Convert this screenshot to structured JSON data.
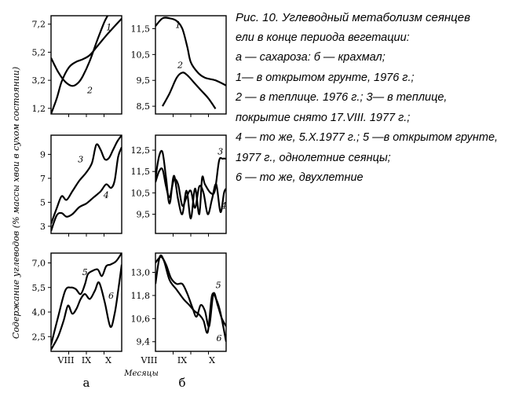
{
  "caption": {
    "line1": "Рис. 10. Углеводный метаболизм сеянцев",
    "line2": "ели в конце периода вегетации:",
    "line3": "а — сахароза: б — крахмал;",
    "line4": "1— в открытом грунте, 1976 г.;",
    "line5": "2 — в теплице. 1976 г.; 3— в теплице,",
    "line6": "покрытие снято 17.VIII. 1977 г.;",
    "line7": "4 — то же, 5.X.1977 г.; 5 —в открытом грунте,",
    "line8": "1977 г., однолетние сеянцы;",
    "line9": "6 — то же, двухлетние"
  },
  "ylabel": "Содержание углеводов (% массы хвои в сухом состоянии)",
  "xlabel": "Месяцы",
  "column_labels": [
    "а",
    "б"
  ],
  "month_ticks": [
    "VIII",
    "IX",
    "X"
  ],
  "chart_data": [
    {
      "type": "line",
      "column": "а",
      "row": 1,
      "ylim": [
        0.8,
        7.8
      ],
      "ticks": [
        7.2,
        5.2,
        3.2,
        1.2
      ],
      "tick_labels": [
        "7,2",
        "5,2",
        "3,2",
        "1,2"
      ],
      "series": [
        {
          "name": "1",
          "x": [
            0,
            0.08,
            0.15,
            0.25,
            0.35,
            0.45,
            0.55,
            0.65,
            0.8,
            1.0
          ],
          "y": [
            0.8,
            1.9,
            3.1,
            4.1,
            4.5,
            4.7,
            5.0,
            5.6,
            6.5,
            7.6
          ]
        },
        {
          "name": "2",
          "x": [
            0,
            0.1,
            0.2,
            0.3,
            0.38,
            0.45,
            0.55,
            0.65,
            0.75,
            0.8
          ],
          "y": [
            4.8,
            3.8,
            3.1,
            2.8,
            3.0,
            3.5,
            4.6,
            6.0,
            7.3,
            7.8
          ]
        }
      ]
    },
    {
      "type": "line",
      "column": "б",
      "row": 1,
      "ylim": [
        8.2,
        12.0
      ],
      "ticks": [
        11.5,
        10.5,
        9.5,
        8.5
      ],
      "tick_labels": [
        "11,5",
        "10,5",
        "9,5",
        "8,5"
      ],
      "series": [
        {
          "name": "1",
          "x": [
            0,
            0.1,
            0.2,
            0.3,
            0.38,
            0.45,
            0.5,
            0.6,
            0.7,
            0.85,
            1.0
          ],
          "y": [
            11.6,
            11.9,
            11.9,
            11.8,
            11.5,
            10.8,
            10.2,
            9.8,
            9.6,
            9.5,
            9.3
          ]
        },
        {
          "name": "2",
          "x": [
            0.1,
            0.2,
            0.3,
            0.38,
            0.45,
            0.55,
            0.65,
            0.75,
            0.85
          ],
          "y": [
            8.5,
            9.0,
            9.6,
            9.8,
            9.7,
            9.4,
            9.1,
            8.8,
            8.4
          ]
        }
      ]
    },
    {
      "type": "line",
      "column": "а",
      "row": 2,
      "ylim": [
        2.4,
        10.6
      ],
      "ticks": [
        9,
        7,
        5,
        3
      ],
      "tick_labels": [
        "9",
        "7",
        "5",
        "3"
      ],
      "series": [
        {
          "name": "3",
          "x": [
            0,
            0.08,
            0.15,
            0.22,
            0.3,
            0.4,
            0.5,
            0.58,
            0.64,
            0.7,
            0.76,
            0.82,
            0.88,
            0.94,
            1.0
          ],
          "y": [
            3.2,
            4.5,
            5.5,
            5.2,
            5.9,
            6.8,
            7.5,
            8.3,
            9.8,
            9.4,
            8.6,
            8.7,
            9.4,
            10.1,
            10.6
          ]
        },
        {
          "name": "4",
          "x": [
            0,
            0.08,
            0.15,
            0.22,
            0.3,
            0.4,
            0.5,
            0.6,
            0.7,
            0.78,
            0.85,
            0.9,
            0.95,
            1.0
          ],
          "y": [
            2.6,
            3.9,
            4.1,
            3.8,
            4.0,
            4.6,
            4.9,
            5.4,
            5.9,
            6.5,
            6.2,
            6.8,
            8.8,
            9.6
          ]
        }
      ]
    },
    {
      "type": "line",
      "column": "б",
      "row": 2,
      "ylim": [
        8.6,
        13.2
      ],
      "ticks": [
        12.5,
        11.5,
        10.5,
        9.5
      ],
      "tick_labels": [
        "12,5",
        "11,5",
        "10,5",
        "9,5"
      ],
      "series": [
        {
          "name": "3",
          "x": [
            0,
            0.05,
            0.1,
            0.15,
            0.2,
            0.26,
            0.32,
            0.38,
            0.44,
            0.5,
            0.56,
            0.62,
            0.66,
            0.7,
            0.78,
            0.84,
            0.9,
            0.95,
            1.0
          ],
          "y": [
            11.2,
            12.2,
            12.4,
            11.2,
            10.0,
            11.3,
            10.2,
            9.5,
            10.6,
            9.3,
            10.7,
            9.5,
            11.2,
            10.9,
            10.5,
            10.6,
            12.0,
            12.1,
            12.1
          ]
        },
        {
          "name": "4",
          "x": [
            0,
            0.05,
            0.1,
            0.15,
            0.2,
            0.26,
            0.32,
            0.38,
            0.44,
            0.5,
            0.56,
            0.62,
            0.68,
            0.74,
            0.8,
            0.86,
            0.92,
            0.97,
            1.0
          ],
          "y": [
            11.0,
            11.5,
            11.6,
            10.8,
            10.3,
            11.1,
            10.9,
            9.9,
            10.3,
            10.6,
            9.8,
            10.8,
            10.5,
            9.5,
            10.2,
            10.9,
            9.6,
            10.5,
            10.7
          ]
        }
      ]
    },
    {
      "type": "line",
      "column": "а",
      "row": 3,
      "ylim": [
        1.6,
        7.6
      ],
      "ticks": [
        7.0,
        5.5,
        4.0,
        2.5
      ],
      "tick_labels": [
        "7,0",
        "5,5",
        "4,0",
        "2,5"
      ],
      "series": [
        {
          "name": "5",
          "x": [
            0,
            0.1,
            0.2,
            0.28,
            0.35,
            0.42,
            0.48,
            0.52,
            0.58,
            0.66,
            0.72,
            0.78,
            0.84,
            0.92,
            1.0
          ],
          "y": [
            2.0,
            3.7,
            5.3,
            5.5,
            5.4,
            5.1,
            5.7,
            6.3,
            6.5,
            6.6,
            6.2,
            6.8,
            6.9,
            7.1,
            7.6
          ]
        },
        {
          "name": "6",
          "x": [
            0,
            0.1,
            0.18,
            0.24,
            0.3,
            0.36,
            0.42,
            0.48,
            0.55,
            0.62,
            0.68,
            0.76,
            0.84,
            0.9,
            0.95,
            1.0
          ],
          "y": [
            1.7,
            2.5,
            3.5,
            4.4,
            3.9,
            4.2,
            4.8,
            5.1,
            4.8,
            5.3,
            5.8,
            4.6,
            3.1,
            3.9,
            5.3,
            6.9
          ]
        }
      ]
    },
    {
      "type": "line",
      "column": "б",
      "row": 3,
      "ylim": [
        8.9,
        14.0
      ],
      "ticks": [
        13.0,
        11.8,
        10.6,
        9.4
      ],
      "tick_labels": [
        "13,0",
        "11,8",
        "10,6",
        "9,4"
      ],
      "series": [
        {
          "name": "5",
          "x": [
            0,
            0.08,
            0.15,
            0.22,
            0.3,
            0.38,
            0.45,
            0.52,
            0.58,
            0.64,
            0.7,
            0.76,
            0.82,
            0.88,
            0.94,
            1.0
          ],
          "y": [
            13.5,
            13.8,
            13.4,
            12.7,
            12.4,
            12.4,
            11.9,
            11.2,
            10.7,
            11.3,
            11.0,
            10.2,
            11.9,
            11.3,
            10.6,
            10.2
          ]
        },
        {
          "name": "6",
          "x": [
            0,
            0.06,
            0.12,
            0.2,
            0.3,
            0.4,
            0.48,
            0.55,
            0.62,
            0.68,
            0.74,
            0.8,
            0.86,
            0.92,
            1.0
          ],
          "y": [
            12.4,
            13.8,
            13.6,
            12.6,
            12.1,
            11.6,
            11.3,
            11.0,
            10.8,
            10.5,
            9.9,
            11.8,
            11.6,
            10.9,
            9.4
          ]
        }
      ]
    }
  ]
}
